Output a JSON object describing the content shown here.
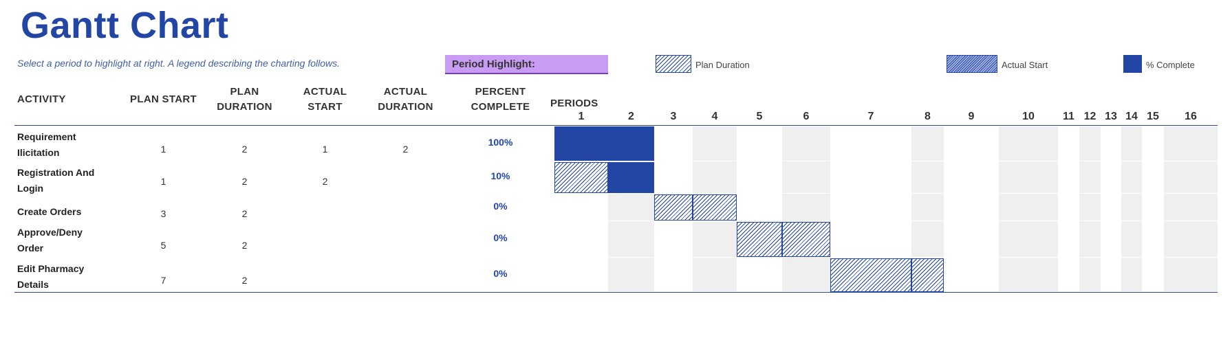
{
  "title": "Gantt Chart",
  "subtitle": "Select a period to highlight at right.  A legend describing the charting follows.",
  "period_highlight_label": "Period Highlight:",
  "legend": {
    "plan_duration": "Plan Duration",
    "actual_start": "Actual Start",
    "percent_complete": "% Complete",
    "colors": {
      "accent": "#2346a5",
      "highlight": "#c79cf2",
      "shade": "#efefef"
    }
  },
  "headers": {
    "activity": "ACTIVITY",
    "plan_start_1": "PLAN START",
    "plan_duration_1": "PLAN",
    "plan_duration_2": "DURATION",
    "actual_start_1": "ACTUAL",
    "actual_start_2": "START",
    "actual_duration_1": "ACTUAL",
    "actual_duration_2": "DURATION",
    "percent_1": "PERCENT",
    "percent_2": "COMPLETE",
    "periods": "PERIODS"
  },
  "periods": [
    "1",
    "2",
    "3",
    "4",
    "5",
    "6",
    "7",
    "8",
    "9",
    "10",
    "11",
    "12",
    "13",
    "14",
    "15",
    "16"
  ],
  "activities": [
    {
      "line1": "Requirement",
      "line2": "Ilicitation",
      "plan_start": "1",
      "plan_duration": "2",
      "actual_start": "1",
      "actual_duration": "2",
      "percent": "100%"
    },
    {
      "line1": "Registration And",
      "line2": "Login",
      "plan_start": "1",
      "plan_duration": "2",
      "actual_start": "2",
      "actual_duration": "",
      "percent": "10%"
    },
    {
      "line1": "Create Orders",
      "line2": "",
      "plan_start": "3",
      "plan_duration": "2",
      "actual_start": "",
      "actual_duration": "",
      "percent": "0%"
    },
    {
      "line1": "Approve/Deny",
      "line2": "Order",
      "plan_start": "5",
      "plan_duration": "2",
      "actual_start": "",
      "actual_duration": "",
      "percent": "0%"
    },
    {
      "line1": "Edit Pharmacy",
      "line2": "Details",
      "plan_start": "7",
      "plan_duration": "2",
      "actual_start": "",
      "actual_duration": "",
      "percent": "0%"
    }
  ]
}
